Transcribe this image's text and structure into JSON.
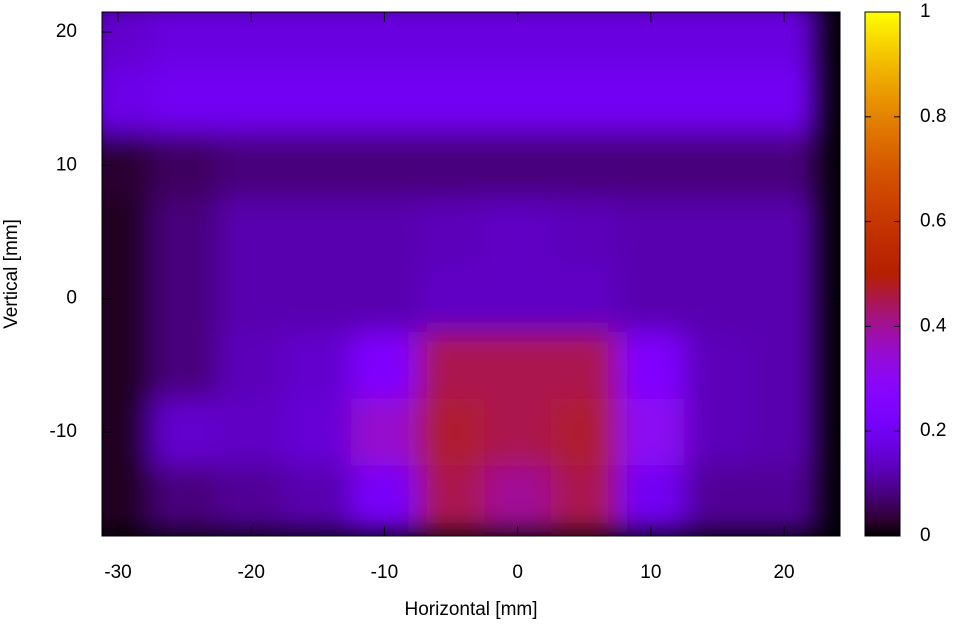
{
  "chart_data": {
    "type": "heatmap",
    "xlabel": "Horizontal [mm]",
    "ylabel": "Vertical [mm]",
    "xlim": [
      -31.2,
      24.2
    ],
    "xticks": [
      -30,
      -20,
      -10,
      0,
      10,
      20
    ],
    "ylim": [
      -17.8,
      21.5
    ],
    "yticks": [
      -10,
      0,
      10,
      20
    ],
    "x": [
      -30,
      -25,
      -20,
      -15,
      -10,
      -5,
      0,
      5,
      10,
      15,
      20
    ],
    "y": [
      20,
      15,
      10,
      5,
      0,
      -5,
      -10,
      -15
    ],
    "z": [
      [
        0.15,
        0.17,
        0.17,
        0.17,
        0.17,
        0.17,
        0.17,
        0.17,
        0.17,
        0.17,
        0.17
      ],
      [
        0.18,
        0.2,
        0.2,
        0.2,
        0.2,
        0.2,
        0.2,
        0.2,
        0.2,
        0.2,
        0.2
      ],
      [
        0.03,
        0.06,
        0.08,
        0.08,
        0.08,
        0.08,
        0.08,
        0.08,
        0.08,
        0.08,
        0.08
      ],
      [
        0.02,
        0.08,
        0.12,
        0.12,
        0.12,
        0.13,
        0.14,
        0.13,
        0.12,
        0.12,
        0.12
      ],
      [
        0.02,
        0.08,
        0.12,
        0.12,
        0.12,
        0.14,
        0.14,
        0.14,
        0.12,
        0.12,
        0.12
      ],
      [
        0.02,
        0.08,
        0.13,
        0.15,
        0.25,
        0.45,
        0.45,
        0.45,
        0.25,
        0.13,
        0.12
      ],
      [
        0.02,
        0.15,
        0.14,
        0.16,
        0.35,
        0.47,
        0.45,
        0.47,
        0.3,
        0.13,
        0.12
      ],
      [
        0.02,
        0.08,
        0.1,
        0.12,
        0.22,
        0.45,
        0.4,
        0.45,
        0.2,
        0.1,
        0.1
      ]
    ],
    "colormap": "gnuplot",
    "zlim": [
      0,
      1
    ],
    "zticks": [
      0,
      0.2,
      0.4,
      0.6,
      0.8,
      1
    ]
  }
}
